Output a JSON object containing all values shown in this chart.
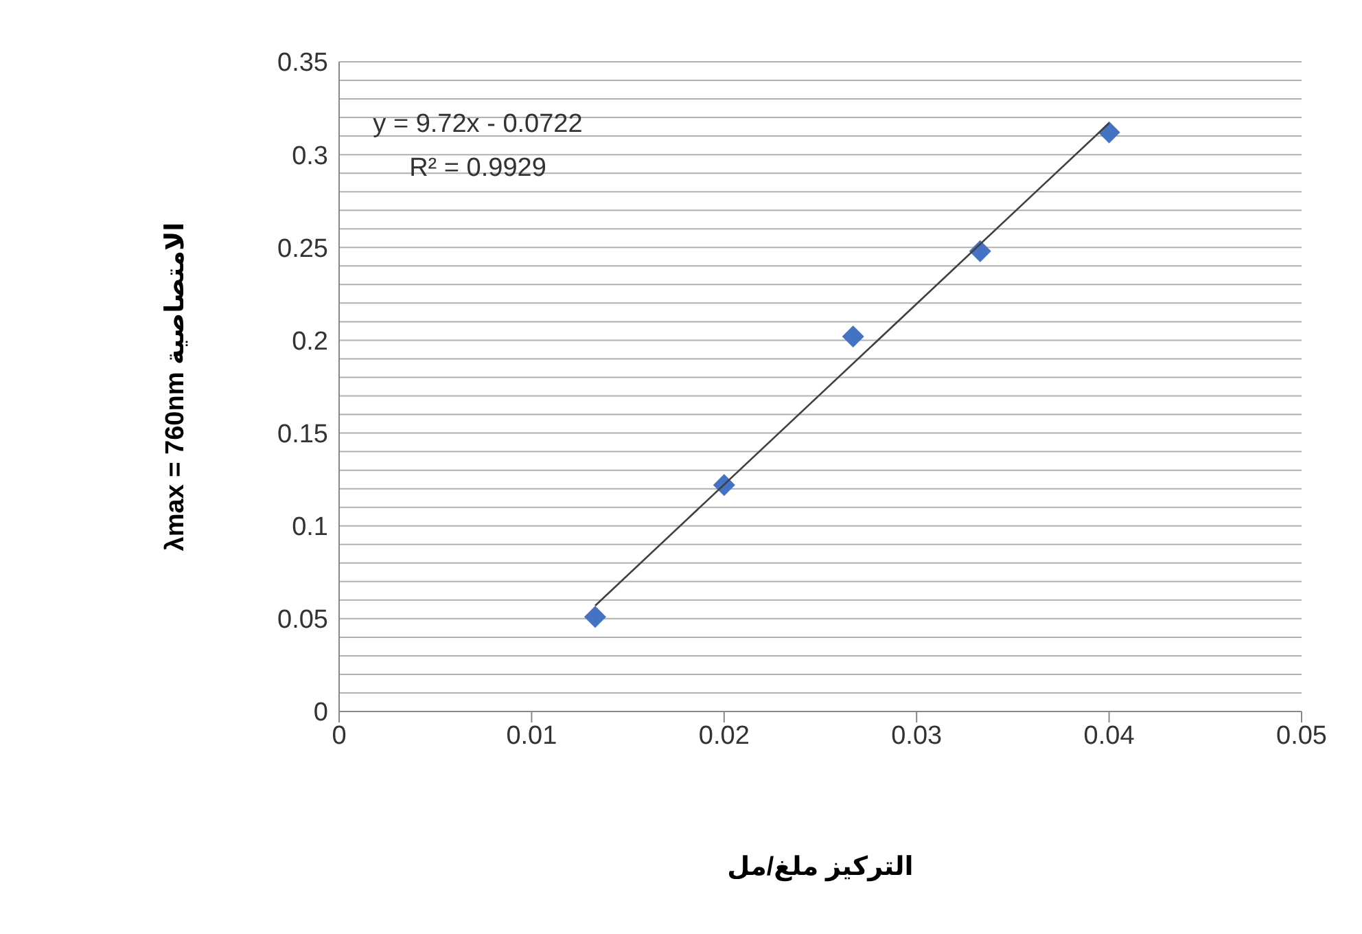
{
  "chart_data": {
    "type": "scatter",
    "xlabel": "التركيز ملغ/مل",
    "ylabel": "λmax = 760nm الامتصاصية",
    "annotations": [
      "y = 9.72x - 0.0722",
      "R² = 0.9929"
    ],
    "series": [
      {
        "color": "#4472c4",
        "marker": "diamond",
        "x": [
          0.0133,
          0.02,
          0.0267,
          0.0333,
          0.04
        ],
        "values": [
          0.051,
          0.122,
          0.202,
          0.248,
          0.312
        ]
      },
      {
        "type": "line",
        "color": "#404040",
        "marker": "none",
        "x": [
          0.0133,
          0.04
        ],
        "values": [
          0.057,
          0.317
        ]
      }
    ],
    "xlim": [
      0,
      0.05
    ],
    "xticks": [
      0,
      0.01,
      0.02,
      0.03,
      0.04,
      0.05
    ],
    "ylim": [
      0,
      0.35
    ],
    "yticks": [
      0,
      {
        "value": 0.01,
        "label": null
      },
      {
        "value": 0.02,
        "label": null
      },
      {
        "value": 0.03,
        "label": null
      },
      {
        "value": 0.04,
        "label": null
      },
      0.05,
      {
        "value": 0.06,
        "label": null
      },
      {
        "value": 0.07,
        "label": null
      },
      {
        "value": 0.08,
        "label": null
      },
      {
        "value": 0.09,
        "label": null
      },
      0.1,
      {
        "value": 0.11,
        "label": null
      },
      {
        "value": 0.12,
        "label": null
      },
      {
        "value": 0.13,
        "label": null
      },
      {
        "value": 0.14,
        "label": null
      },
      0.15,
      {
        "value": 0.16,
        "label": null
      },
      {
        "value": 0.17,
        "label": null
      },
      {
        "value": 0.18,
        "label": null
      },
      {
        "value": 0.19,
        "label": null
      },
      0.2,
      {
        "value": 0.21,
        "label": null
      },
      {
        "value": 0.22,
        "label": null
      },
      {
        "value": 0.23,
        "label": null
      },
      {
        "value": 0.24,
        "label": null
      },
      0.25,
      {
        "value": 0.26,
        "label": null
      },
      {
        "value": 0.27,
        "label": null
      },
      {
        "value": 0.28,
        "label": null
      },
      {
        "value": 0.29,
        "label": null
      },
      0.3,
      {
        "value": 0.31,
        "label": null
      },
      {
        "value": 0.32,
        "label": null
      },
      {
        "value": 0.33,
        "label": null
      },
      {
        "value": 0.34,
        "label": null
      },
      0.35
    ],
    "grid": "y",
    "legend": false
  }
}
